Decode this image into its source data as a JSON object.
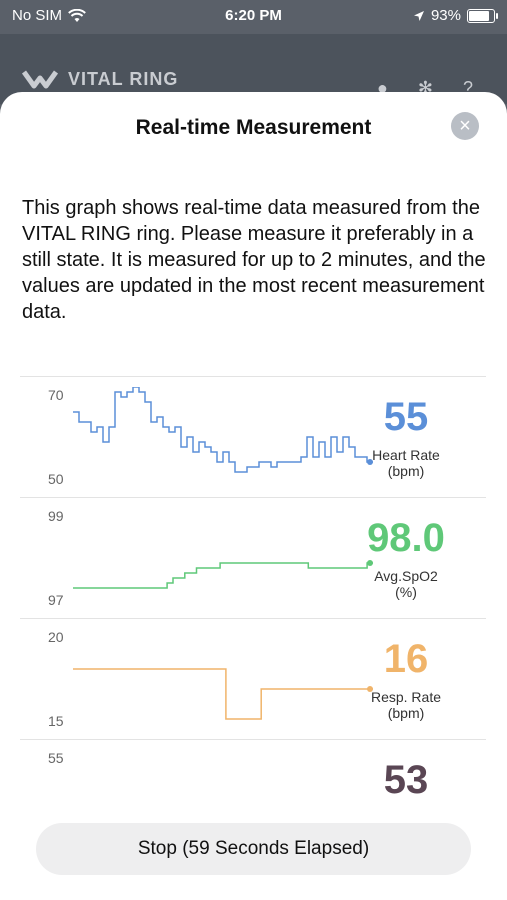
{
  "status": {
    "carrier": "No SIM",
    "time": "6:20 PM",
    "battery": "93%",
    "battery_level": 0.93
  },
  "backdrop": {
    "app_name": "VITAL RING"
  },
  "sheet": {
    "title": "Real-time Measurement",
    "description": "This graph shows real-time data measured from the VITAL RING ring. Please measure it preferably in a still state. It is measured for up to 2 minutes, and the values are updated in the most recent measurement data."
  },
  "metrics": [
    {
      "value": "55",
      "label_line1": "Heart Rate",
      "label_line2": "(bpm)",
      "ymax": "70",
      "ymin": "50",
      "color": "#5b8fd8",
      "series": [
        65,
        63,
        63,
        61,
        62,
        59,
        62,
        69,
        68,
        69,
        70,
        69,
        67,
        63,
        64,
        62,
        61,
        62,
        58,
        60,
        57,
        59,
        58,
        57,
        55,
        57,
        55,
        53,
        53,
        54,
        54,
        55,
        55,
        54,
        55,
        55,
        55,
        55,
        56,
        60,
        56,
        59,
        56,
        60,
        57,
        60,
        58,
        56,
        56,
        55
      ]
    },
    {
      "value": "98.0",
      "label_line1": "Avg.SpO2",
      "label_line2": "(%)",
      "ymax": "99",
      "ymin": "97",
      "color": "#5fc878",
      "series": [
        97.4,
        97.4,
        97.4,
        97.4,
        97.4,
        97.4,
        97.4,
        97.4,
        97.4,
        97.4,
        97.4,
        97.4,
        97.4,
        97.4,
        97.4,
        97.4,
        97.5,
        97.6,
        97.6,
        97.7,
        97.7,
        97.8,
        97.8,
        97.8,
        97.8,
        97.9,
        97.9,
        97.9,
        97.9,
        97.9,
        97.9,
        97.9,
        97.9,
        97.9,
        97.9,
        97.9,
        97.9,
        97.9,
        97.9,
        97.9,
        97.8,
        97.8,
        97.8,
        97.8,
        97.8,
        97.8,
        97.8,
        97.8,
        97.8,
        97.8,
        97.9
      ]
    },
    {
      "value": "16",
      "label_line1": "Resp. Rate",
      "label_line2": "(bpm)",
      "ymax": "20",
      "ymin": "15",
      "color": "#f0b46a",
      "series": [
        18,
        18,
        18,
        18,
        18,
        18,
        18,
        18,
        18,
        18,
        18,
        18,
        18,
        18,
        18,
        18,
        18,
        18,
        18,
        18,
        18,
        18,
        18,
        18,
        18,
        18,
        15.5,
        15.5,
        15.5,
        15.5,
        15.5,
        15.5,
        17,
        17,
        17,
        17,
        17,
        17,
        17,
        17,
        17,
        17,
        17,
        17,
        17,
        17,
        17,
        17,
        17,
        17,
        17
      ]
    },
    {
      "value": "53",
      "label_line1": "",
      "label_line2": "",
      "ymax": "55",
      "ymin": "",
      "color": "#5a4654",
      "series": []
    }
  ],
  "stop_button": {
    "label": "Stop (59 Seconds Elapsed)"
  }
}
